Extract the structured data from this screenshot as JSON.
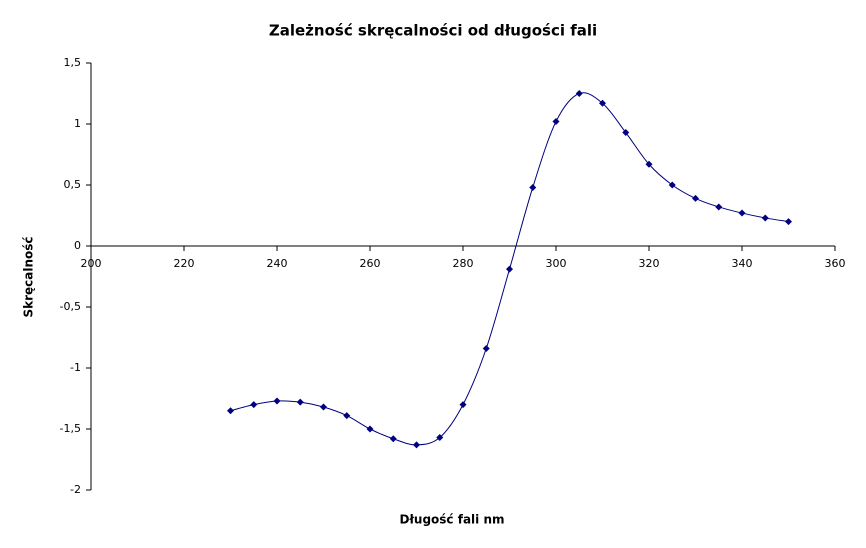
{
  "chart_data": {
    "type": "scatter",
    "title": "Zależność skręcalności od długości fali",
    "x_label": "Długość fali nm",
    "y_label": "Skręcalność",
    "x": [
      230,
      235,
      240,
      245,
      250,
      255,
      260,
      265,
      270,
      275,
      280,
      285,
      290,
      295,
      300,
      305,
      310,
      315,
      320,
      325,
      330,
      335,
      340,
      345,
      350
    ],
    "series": [
      {
        "color": "#000080",
        "values": [
          -1.35,
          -1.3,
          -1.27,
          -1.28,
          -1.32,
          -1.39,
          -1.5,
          -1.58,
          -1.63,
          -1.57,
          -1.3,
          -0.84,
          -0.19,
          0.48,
          1.02,
          1.25,
          1.17,
          0.93,
          0.67,
          0.5,
          0.39,
          0.32,
          0.27,
          0.23,
          0.2
        ]
      }
    ],
    "xlim": [
      200,
      360
    ],
    "xticks": [
      200,
      220,
      240,
      260,
      280,
      300,
      320,
      340,
      360
    ],
    "ylim": [
      -2,
      1.5
    ],
    "yticks": [
      {
        "value": 1.5,
        "label": "1,5"
      },
      1,
      {
        "value": 0.5,
        "label": "0,5"
      },
      0,
      {
        "value": -0.5,
        "label": "-0,5"
      },
      -1,
      {
        "value": -1.5,
        "label": "-1,5"
      },
      -2
    ],
    "smooth": true,
    "grid": false
  }
}
